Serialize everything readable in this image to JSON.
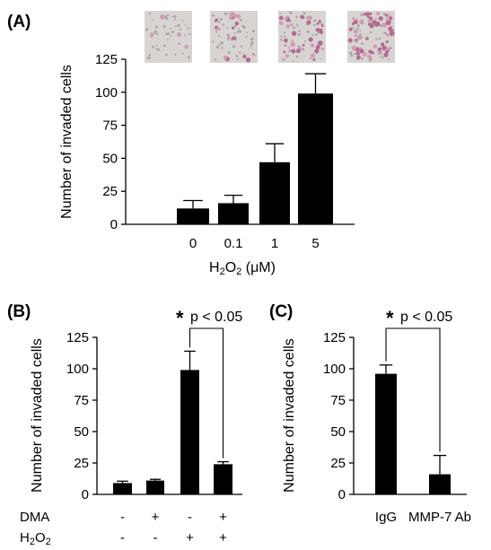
{
  "panels": [
    {
      "id": "A",
      "letter": "(A)",
      "ylabel": "Number of invaded cells",
      "xlabel_parts": [
        {
          "t": "H",
          "sub": false
        },
        {
          "t": "2",
          "sub": true
        },
        {
          "t": "O",
          "sub": false
        },
        {
          "t": "2",
          "sub": true
        },
        {
          "t": " (μM)",
          "sub": false
        }
      ],
      "has_micrographs": true
    },
    {
      "id": "B",
      "letter": "(B)",
      "ylabel": "Number of invaded cells",
      "treatment_rows": [
        {
          "label_parts": [
            {
              "t": "DMA",
              "sub": false
            }
          ],
          "signs": [
            "-",
            "+",
            "-",
            "+"
          ]
        },
        {
          "label_parts": [
            {
              "t": "H",
              "sub": false
            },
            {
              "t": "2",
              "sub": true
            },
            {
              "t": "O",
              "sub": false
            },
            {
              "t": "2",
              "sub": true
            }
          ],
          "signs": [
            "-",
            "-",
            "+",
            "+"
          ]
        }
      ],
      "significance": {
        "star": "*",
        "text": "p < 0.05",
        "between": [
          2,
          3
        ]
      }
    },
    {
      "id": "C",
      "letter": "(C)",
      "ylabel": "Number of invaded cells",
      "significance": {
        "star": "*",
        "text": "p < 0.05",
        "between": [
          0,
          1
        ]
      }
    }
  ],
  "chart_data": [
    {
      "panel": "A",
      "type": "bar",
      "categories": [
        "0",
        "0.1",
        "1",
        "5"
      ],
      "values": [
        12,
        16,
        47,
        99
      ],
      "errors": [
        6,
        6,
        14,
        15
      ],
      "xlabel": "H2O2 (μM)",
      "ylabel": "Number of invaded cells",
      "ylim": [
        0,
        125
      ],
      "yticks": [
        "0",
        "25",
        "50",
        "75",
        "100",
        "125"
      ],
      "grid": false,
      "bar_color": "#000000"
    },
    {
      "panel": "B",
      "type": "bar",
      "categories": [
        "",
        "",
        "",
        ""
      ],
      "values": [
        9,
        11,
        99,
        24
      ],
      "errors": [
        1.5,
        1,
        15,
        2
      ],
      "ylabel": "Number of invaded cells",
      "ylim": [
        0,
        125
      ],
      "yticks": [
        "0",
        "25",
        "50",
        "75",
        "100",
        "125"
      ],
      "grid": false,
      "bar_color": "#000000"
    },
    {
      "panel": "C",
      "type": "bar",
      "categories": [
        "IgG",
        "MMP-7 Ab"
      ],
      "values": [
        96,
        16
      ],
      "errors": [
        7,
        15
      ],
      "ylabel": "Number of invaded cells",
      "ylim": [
        0,
        125
      ],
      "yticks": [
        "0",
        "25",
        "50",
        "75",
        "100",
        "125"
      ],
      "grid": false,
      "bar_color": "#000000"
    }
  ],
  "micrograph_colors": {
    "background": "#d8d4d2",
    "cell": "#b56b93",
    "cell_light": "#cf9bb7",
    "noise": "#a9a3a6"
  }
}
